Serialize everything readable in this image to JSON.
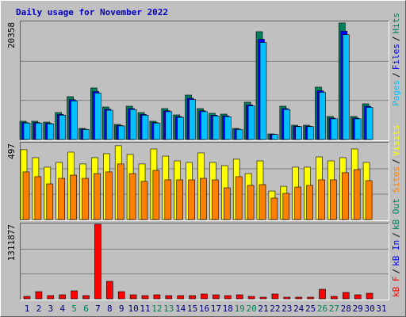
{
  "chart_data": [
    {
      "type": "bar",
      "title": "Daily usage for November 2022",
      "title_color": "#0000c0",
      "ylim": [
        0,
        20358
      ],
      "yticks": [
        20358
      ],
      "grid_lines": 3,
      "series": [
        {
          "name": "Hits",
          "color": "#00805c",
          "values": [
            3165,
            3165,
            3027,
            4678,
            7430,
            1926,
            8944,
            5641,
            2614,
            5779,
            4678,
            3165,
            5366,
            4265,
            7705,
            5366,
            4540,
            4403,
            1926,
            6467,
            18713,
            963,
            5779,
            2477,
            2477,
            9081,
            3990,
            20226,
            3990,
            6192,
            null
          ]
        },
        {
          "name": "Files",
          "color": "#0000ff",
          "values": [
            2940,
            2940,
            2810,
            4350,
            6910,
            1790,
            8320,
            5250,
            2430,
            5370,
            4350,
            2940,
            4990,
            3970,
            7170,
            4990,
            4220,
            4090,
            1790,
            6010,
            17400,
            900,
            5370,
            2300,
            2300,
            8450,
            3710,
            18810,
            3710,
            5760,
            null
          ]
        },
        {
          "name": "Pages",
          "color": "#00c0ff",
          "values": [
            2850,
            2850,
            2720,
            4210,
            6690,
            1730,
            8050,
            5080,
            2350,
            5200,
            4210,
            2850,
            4830,
            3840,
            6930,
            4830,
            4090,
            3960,
            1730,
            5820,
            16840,
            870,
            5200,
            2230,
            2230,
            8170,
            3590,
            18200,
            3590,
            5570,
            null
          ]
        }
      ],
      "separator": "/"
    },
    {
      "type": "bar",
      "ylim": [
        0,
        497
      ],
      "yticks": [
        497
      ],
      "grid_lines": 3,
      "series": [
        {
          "name": "Visits",
          "color": "#ffff00",
          "values": [
            456,
            404,
            342,
            373,
            440,
            363,
            404,
            430,
            482,
            425,
            363,
            461,
            414,
            383,
            373,
            435,
            373,
            352,
            394,
            300,
            383,
            186,
            217,
            342,
            342,
            409,
            383,
            404,
            461,
            373,
            null
          ]
        },
        {
          "name": "Sites",
          "color": "#ff8000",
          "values": [
            311,
            280,
            233,
            269,
            290,
            269,
            300,
            311,
            363,
            300,
            249,
            321,
            259,
            259,
            259,
            269,
            259,
            207,
            280,
            223,
            228,
            140,
            171,
            212,
            223,
            259,
            259,
            306,
            326,
            254,
            null
          ]
        }
      ],
      "separator": "/"
    },
    {
      "type": "bar",
      "ylim": [
        0,
        1311877
      ],
      "yticks": [
        1311877
      ],
      "grid_lines": 3,
      "categories": [
        "1",
        "2",
        "3",
        "4",
        "5",
        "6",
        "7",
        "8",
        "9",
        "10",
        "11",
        "12",
        "13",
        "14",
        "15",
        "16",
        "17",
        "18",
        "19",
        "20",
        "21",
        "22",
        "23",
        "24",
        "25",
        "26",
        "27",
        "28",
        "29",
        "30",
        "31"
      ],
      "category_colors": [
        "#000080",
        "#000080",
        "#000080",
        "#000080",
        "#00805c",
        "#00805c",
        "#000080",
        "#000080",
        "#000080",
        "#000080",
        "#000080",
        "#00805c",
        "#00805c",
        "#000080",
        "#000080",
        "#000080",
        "#000080",
        "#000080",
        "#00805c",
        "#00805c",
        "#000080",
        "#000080",
        "#000080",
        "#000080",
        "#000080",
        "#00805c",
        "#00805c",
        "#000080",
        "#000080",
        "#000080",
        "#000080"
      ],
      "series": [
        {
          "name": "kB Out",
          "color": "#00805c",
          "values": [
            null,
            null,
            null,
            null,
            null,
            null,
            null,
            null,
            null,
            null,
            null,
            null,
            null,
            null,
            null,
            null,
            null,
            null,
            null,
            null,
            null,
            null,
            null,
            null,
            null,
            null,
            null,
            null,
            null,
            null,
            null
          ]
        },
        {
          "name": "kB In",
          "color": "#0000ff",
          "values": [
            null,
            null,
            null,
            null,
            null,
            null,
            null,
            null,
            null,
            null,
            null,
            null,
            null,
            null,
            null,
            null,
            null,
            null,
            null,
            null,
            null,
            null,
            null,
            null,
            null,
            null,
            null,
            null,
            null,
            null,
            null
          ]
        },
        {
          "name": "kB F",
          "color": "#ff0000",
          "values": [
            41868,
            125604,
            55824,
            69780,
            139560,
            55824,
            1311877,
            307032,
            125604,
            69780,
            55824,
            69780,
            55824,
            55824,
            55824,
            83736,
            69780,
            55824,
            69780,
            41868,
            27912,
            83736,
            27912,
            27912,
            27912,
            167472,
            41868,
            111648,
            69780,
            97692,
            null
          ]
        }
      ],
      "separator": "/"
    }
  ]
}
